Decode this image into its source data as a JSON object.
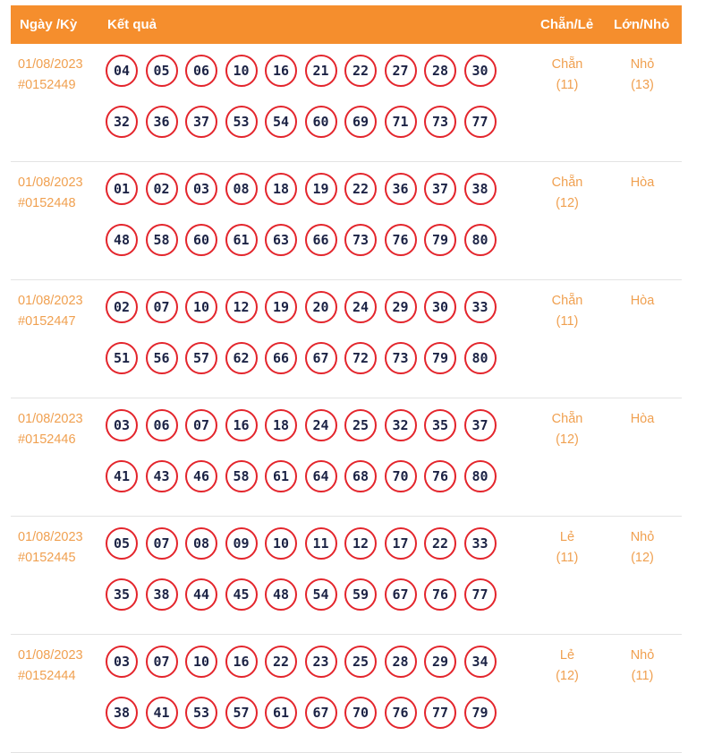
{
  "table": {
    "headers": {
      "date": "Ngày /Kỳ",
      "result": "Kết quả",
      "parity": "Chẵn/Lẻ",
      "size": "Lớn/Nhỏ"
    },
    "rows": [
      {
        "date": "01/08/2023",
        "draw": "#0152449",
        "parity": "Chẵn",
        "parity_count": "(11)",
        "size": "Nhỏ",
        "size_count": "(13)",
        "numbers": [
          "04",
          "05",
          "06",
          "10",
          "16",
          "21",
          "22",
          "27",
          "28",
          "30",
          "32",
          "36",
          "37",
          "53",
          "54",
          "60",
          "69",
          "71",
          "73",
          "77"
        ]
      },
      {
        "date": "01/08/2023",
        "draw": "#0152448",
        "parity": "Chẵn",
        "parity_count": "(12)",
        "size": "Hòa",
        "size_count": "",
        "numbers": [
          "01",
          "02",
          "03",
          "08",
          "18",
          "19",
          "22",
          "36",
          "37",
          "38",
          "48",
          "58",
          "60",
          "61",
          "63",
          "66",
          "73",
          "76",
          "79",
          "80"
        ]
      },
      {
        "date": "01/08/2023",
        "draw": "#0152447",
        "parity": "Chẵn",
        "parity_count": "(11)",
        "size": "Hòa",
        "size_count": "",
        "numbers": [
          "02",
          "07",
          "10",
          "12",
          "19",
          "20",
          "24",
          "29",
          "30",
          "33",
          "51",
          "56",
          "57",
          "62",
          "66",
          "67",
          "72",
          "73",
          "79",
          "80"
        ]
      },
      {
        "date": "01/08/2023",
        "draw": "#0152446",
        "parity": "Chẵn",
        "parity_count": "(12)",
        "size": "Hòa",
        "size_count": "",
        "numbers": [
          "03",
          "06",
          "07",
          "16",
          "18",
          "24",
          "25",
          "32",
          "35",
          "37",
          "41",
          "43",
          "46",
          "58",
          "61",
          "64",
          "68",
          "70",
          "76",
          "80"
        ]
      },
      {
        "date": "01/08/2023",
        "draw": "#0152445",
        "parity": "Lẻ",
        "parity_count": "(11)",
        "size": "Nhỏ",
        "size_count": "(12)",
        "numbers": [
          "05",
          "07",
          "08",
          "09",
          "10",
          "11",
          "12",
          "17",
          "22",
          "33",
          "35",
          "38",
          "44",
          "45",
          "48",
          "54",
          "59",
          "67",
          "76",
          "77"
        ]
      },
      {
        "date": "01/08/2023",
        "draw": "#0152444",
        "parity": "Lẻ",
        "parity_count": "(12)",
        "size": "Nhỏ",
        "size_count": "(11)",
        "numbers": [
          "03",
          "07",
          "10",
          "16",
          "22",
          "23",
          "25",
          "28",
          "29",
          "34",
          "38",
          "41",
          "53",
          "57",
          "61",
          "67",
          "70",
          "76",
          "77",
          "79"
        ]
      }
    ]
  },
  "colors": {
    "header_bg": "#f58e2d",
    "accent_text": "#f0a050",
    "ball_border": "#e3252c",
    "ball_text": "#1c2345"
  }
}
